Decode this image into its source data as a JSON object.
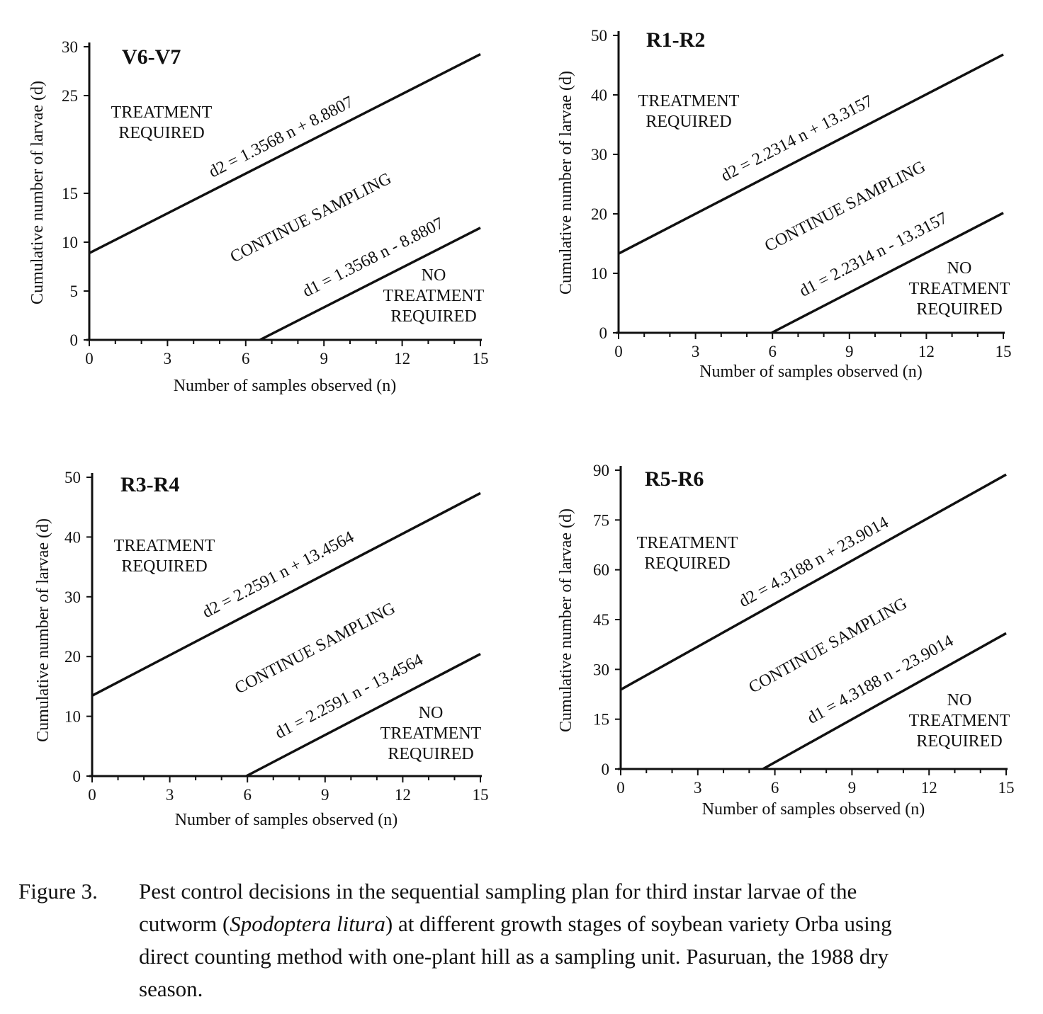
{
  "figure": {
    "label": "Figure 3.",
    "caption_lines": [
      [
        "Pest control decisions in the sequential sampling plan for third instar larvae of the"
      ],
      [
        "cutworm (",
        "Spodoptera litura",
        ") at different growth stages of soybean variety Orba using"
      ],
      [
        "direct counting method with one-plant hill as a sampling unit. Pasuruan, the 1988 dry"
      ],
      [
        "season."
      ]
    ]
  },
  "chart_data": [
    {
      "type": "line",
      "title": "V6-V7",
      "xlabel": "Number of samples observed (n)",
      "ylabel": "Cumulative number of larvae (d)",
      "xlim": [
        0,
        15
      ],
      "ylim": [
        0,
        30
      ],
      "xticks": [
        "0",
        "3",
        "6",
        "9",
        "12",
        "15"
      ],
      "yticks": [
        "0",
        "5",
        "10",
        "15",
        "25",
        "30"
      ],
      "ytick_values": [
        0,
        5,
        10,
        15,
        25,
        30
      ],
      "series": [
        {
          "name": "d2",
          "label": "d2 = 1.3568 n + 8.8807",
          "slope": 1.3568,
          "intercept": 8.8807
        },
        {
          "name": "d1",
          "label": "d1 = 1.3568 n - 8.8807",
          "slope": 1.3568,
          "intercept": -8.8807
        }
      ],
      "regions": {
        "treatment": [
          "TREATMENT",
          "REQUIRED"
        ],
        "continue": "CONTINUE SAMPLING",
        "no_treatment": [
          "NO",
          "TREATMENT",
          "REQUIRED"
        ]
      }
    },
    {
      "type": "line",
      "title": "R1-R2",
      "xlabel": "Number of samples observed (n)",
      "ylabel": "Cumulative number of larvae (d)",
      "xlim": [
        0,
        15
      ],
      "ylim": [
        0,
        50
      ],
      "xticks": [
        "0",
        "3",
        "6",
        "9",
        "12",
        "15"
      ],
      "yticks": [
        "0",
        "10",
        "20",
        "30",
        "40",
        "50"
      ],
      "ytick_values": [
        0,
        10,
        20,
        30,
        40,
        50
      ],
      "series": [
        {
          "name": "d2",
          "label": "d2 = 2.2314 n + 13.3157",
          "slope": 2.2314,
          "intercept": 13.3157
        },
        {
          "name": "d1",
          "label": "d1 = 2.2314 n - 13.3157",
          "slope": 2.2314,
          "intercept": -13.3157
        }
      ],
      "regions": {
        "treatment": [
          "TREATMENT",
          "REQUIRED"
        ],
        "continue": "CONTINUE SAMPLING",
        "no_treatment": [
          "NO",
          "TREATMENT",
          "REQUIRED"
        ]
      }
    },
    {
      "type": "line",
      "title": "R3-R4",
      "xlabel": "Number of samples observed (n)",
      "ylabel": "Cumulative number of larvae (d)",
      "xlim": [
        0,
        15
      ],
      "ylim": [
        0,
        50
      ],
      "xticks": [
        "0",
        "3",
        "6",
        "9",
        "12",
        "15"
      ],
      "yticks": [
        "0",
        "10",
        "20",
        "30",
        "40",
        "50"
      ],
      "ytick_values": [
        0,
        10,
        20,
        30,
        40,
        50
      ],
      "series": [
        {
          "name": "d2",
          "label": "d2 = 2.2591 n + 13.4564",
          "slope": 2.2591,
          "intercept": 13.4564
        },
        {
          "name": "d1",
          "label": "d1 = 2.2591 n - 13.4564",
          "slope": 2.2591,
          "intercept": -13.4564
        }
      ],
      "regions": {
        "treatment": [
          "TREATMENT",
          "REQUIRED"
        ],
        "continue": "CONTINUE SAMPLING",
        "no_treatment": [
          "NO",
          "TREATMENT",
          "REQUIRED"
        ]
      }
    },
    {
      "type": "line",
      "title": "R5-R6",
      "xlabel": "Number of samples observed (n)",
      "ylabel": "Cumulative number of larvae (d)",
      "xlim": [
        0,
        15
      ],
      "ylim": [
        0,
        90
      ],
      "xticks": [
        "0",
        "3",
        "6",
        "9",
        "12",
        "15"
      ],
      "yticks": [
        "0",
        "15",
        "30",
        "45",
        "60",
        "75",
        "90"
      ],
      "ytick_values": [
        0,
        15,
        30,
        45,
        60,
        75,
        90
      ],
      "series": [
        {
          "name": "d2",
          "label": "d2 = 4.3188 n + 23.9014",
          "slope": 4.3188,
          "intercept": 23.9014
        },
        {
          "name": "d1",
          "label": "d1 = 4.3188 n - 23.9014",
          "slope": 4.3188,
          "intercept": -23.9014
        }
      ],
      "regions": {
        "treatment": [
          "TREATMENT",
          "REQUIRED"
        ],
        "continue": "CONTINUE SAMPLING",
        "no_treatment": [
          "NO",
          "TREATMENT",
          "REQUIRED"
        ]
      }
    }
  ]
}
